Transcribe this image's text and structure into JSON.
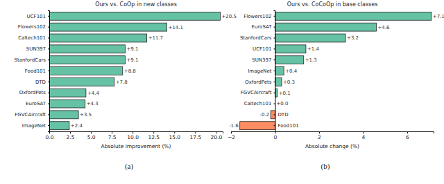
{
  "chart_data": [
    {
      "type": "bar",
      "orientation": "horizontal",
      "data_labels": true,
      "title": "Ours vs. CoOp in new classes",
      "x_label": "Absolute improvement (%)",
      "caption": "(a)",
      "categories": [
        "UCF101",
        "Flowers102",
        "Caltech101",
        "SUN397",
        "StanfordCars",
        "Food101",
        "DTD",
        "OxfordPets",
        "EuroSAT",
        "FGVCAircraft",
        "ImageNet"
      ],
      "values": [
        20.5,
        14.1,
        11.7,
        9.1,
        9.1,
        8.8,
        7.8,
        4.4,
        4.3,
        3.5,
        2.4
      ],
      "value_labels": [
        "+20.5",
        "+14.1",
        "+11.7",
        "+9.1",
        "+9.1",
        "+8.8",
        "+7.8",
        "+4.4",
        "+4.3",
        "+3.5",
        "+2.4"
      ],
      "colors": [
        "#66c2a5",
        "#66c2a5",
        "#66c2a5",
        "#66c2a5",
        "#66c2a5",
        "#66c2a5",
        "#66c2a5",
        "#66c2a5",
        "#66c2a5",
        "#66c2a5",
        "#66c2a5"
      ],
      "xlim": [
        0,
        20.8
      ],
      "xticks": [
        {
          "value": 0,
          "label": "0.0"
        },
        2.5,
        {
          "value": 5,
          "label": "5.0"
        },
        7.5,
        {
          "value": 10,
          "label": "10.0"
        },
        12.5,
        {
          "value": 15,
          "label": "15.0"
        },
        17.5,
        {
          "value": 20,
          "label": "20.0"
        }
      ]
    },
    {
      "type": "bar",
      "orientation": "horizontal",
      "data_labels": true,
      "title": "Ours vs. CoCoOp in base classes",
      "x_label": "Absolute change (%)",
      "caption": "(b)",
      "categories": [
        "Flowers102",
        "EuroSAT",
        "StanfordCars",
        "UCF101",
        "SUN397",
        "ImageNet",
        "OxfordPets",
        "FGVCAircraft",
        "Caltech101",
        "DTD",
        "Food101"
      ],
      "values": [
        7.1,
        4.6,
        3.2,
        1.4,
        1.3,
        0.4,
        0.3,
        0.1,
        0.0,
        -0.2,
        -1.6
      ],
      "value_labels": [
        "+7.1",
        "+4.6",
        "+3.2",
        "+1.4",
        "+1.3",
        "+0.4",
        "+0.3",
        "+0.1",
        "+0.0",
        "-0.2",
        "-1.6"
      ],
      "colors": [
        "#66c2a5",
        "#66c2a5",
        "#66c2a5",
        "#66c2a5",
        "#66c2a5",
        "#66c2a5",
        "#66c2a5",
        "#66c2a5",
        "#66c2a5",
        "#fc8d62",
        "#fc8d62"
      ],
      "xlim": [
        -2.0,
        7.2
      ],
      "xticks": [
        {
          "value": -2,
          "label": "−2"
        },
        0,
        2,
        4,
        6
      ]
    }
  ]
}
